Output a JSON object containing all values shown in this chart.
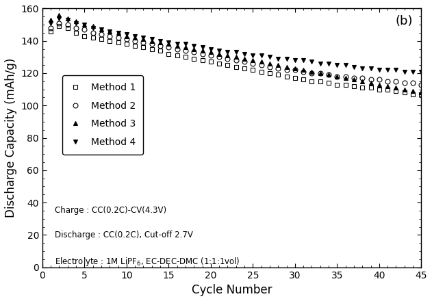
{
  "title": "(b)",
  "xlabel": "Cycle Number",
  "ylabel": "Discharge Capacity (mAh/g)",
  "xlim": [
    0,
    45
  ],
  "ylim": [
    0,
    160
  ],
  "xticks": [
    0,
    5,
    10,
    15,
    20,
    25,
    30,
    35,
    40,
    45
  ],
  "yticks": [
    0,
    20,
    40,
    60,
    80,
    100,
    120,
    140,
    160
  ],
  "method1_cycles": [
    1,
    2,
    3,
    4,
    5,
    6,
    7,
    8,
    9,
    10,
    11,
    12,
    13,
    14,
    15,
    16,
    17,
    18,
    19,
    20,
    21,
    22,
    23,
    24,
    25,
    26,
    27,
    28,
    29,
    30,
    31,
    32,
    33,
    34,
    35,
    36,
    37,
    38,
    39,
    40,
    41,
    42,
    43,
    44,
    45
  ],
  "method1_values": [
    146,
    149,
    148,
    145,
    143,
    142,
    141,
    140,
    139,
    138,
    137,
    136,
    135,
    134,
    132,
    131,
    130,
    129,
    128,
    127,
    126,
    125,
    124,
    123,
    122,
    121,
    120,
    119,
    118,
    117,
    116,
    115,
    115,
    114,
    113,
    113,
    112,
    111,
    111,
    110,
    110,
    109,
    108,
    107,
    107
  ],
  "method2_cycles": [
    1,
    2,
    3,
    4,
    5,
    6,
    7,
    8,
    9,
    10,
    11,
    12,
    13,
    14,
    15,
    16,
    17,
    18,
    19,
    20,
    21,
    22,
    23,
    24,
    25,
    26,
    27,
    28,
    29,
    30,
    31,
    32,
    33,
    34,
    35,
    36,
    37,
    38,
    39,
    40,
    41,
    42,
    43,
    44,
    45
  ],
  "method2_values": [
    148,
    151,
    150,
    148,
    147,
    145,
    144,
    143,
    142,
    141,
    140,
    139,
    138,
    137,
    136,
    135,
    134,
    133,
    132,
    131,
    130,
    129,
    128,
    127,
    126,
    125,
    124,
    123,
    122,
    122,
    121,
    120,
    120,
    119,
    118,
    118,
    117,
    117,
    116,
    116,
    115,
    115,
    114,
    114,
    113
  ],
  "method3_cycles": [
    1,
    2,
    3,
    4,
    5,
    6,
    7,
    8,
    9,
    10,
    11,
    12,
    13,
    14,
    15,
    16,
    17,
    18,
    19,
    20,
    21,
    22,
    23,
    24,
    25,
    26,
    27,
    28,
    29,
    30,
    31,
    32,
    33,
    34,
    35,
    36,
    37,
    38,
    39,
    40,
    41,
    42,
    43,
    44,
    45
  ],
  "method3_values": [
    153,
    156,
    154,
    152,
    150,
    149,
    147,
    146,
    145,
    143,
    142,
    141,
    140,
    139,
    138,
    137,
    136,
    135,
    134,
    133,
    132,
    131,
    130,
    129,
    128,
    127,
    126,
    125,
    124,
    123,
    122,
    121,
    120,
    119,
    118,
    117,
    116,
    115,
    114,
    113,
    112,
    111,
    110,
    109,
    108
  ],
  "method4_cycles": [
    1,
    2,
    3,
    4,
    5,
    6,
    7,
    8,
    9,
    10,
    11,
    12,
    13,
    14,
    15,
    16,
    17,
    18,
    19,
    20,
    21,
    22,
    23,
    24,
    25,
    26,
    27,
    28,
    29,
    30,
    31,
    32,
    33,
    34,
    35,
    36,
    37,
    38,
    39,
    40,
    41,
    42,
    43,
    44,
    45
  ],
  "method4_values": [
    151,
    154,
    153,
    151,
    150,
    148,
    147,
    146,
    145,
    144,
    143,
    142,
    141,
    140,
    139,
    138,
    138,
    137,
    136,
    135,
    134,
    133,
    133,
    132,
    131,
    131,
    130,
    129,
    129,
    128,
    128,
    127,
    126,
    126,
    125,
    125,
    124,
    123,
    123,
    122,
    122,
    122,
    121,
    121,
    121
  ],
  "bg_color": "#ffffff",
  "text_color": "#000000",
  "marker_size": 5.0,
  "linewidth": 0
}
